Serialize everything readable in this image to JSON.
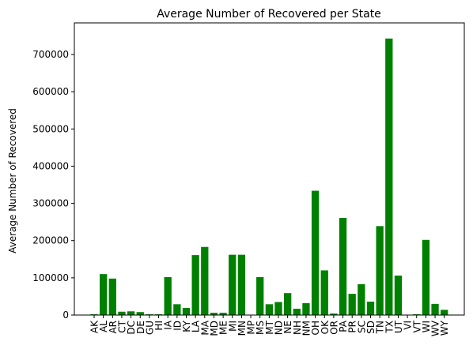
{
  "chart_data": {
    "type": "bar",
    "title": "Average Number of Recovered per State",
    "xlabel": "",
    "ylabel": "Average Number of Recovered",
    "ylim": [
      0,
      785000
    ],
    "yticks": [
      0,
      100000,
      200000,
      300000,
      400000,
      500000,
      600000,
      700000
    ],
    "grid": false,
    "bar_color": "#008000",
    "categories": [
      "AK",
      "AL",
      "AR",
      "CT",
      "DC",
      "DE",
      "GU",
      "HI",
      "IA",
      "ID",
      "KY",
      "LA",
      "MA",
      "MD",
      "ME",
      "MI",
      "MN",
      "MP",
      "MS",
      "MT",
      "ND",
      "NE",
      "NH",
      "NM",
      "OH",
      "OK",
      "OR",
      "PA",
      "PR",
      "SC",
      "SD",
      "TN",
      "TX",
      "UT",
      "VI",
      "VT",
      "WI",
      "WV",
      "WY"
    ],
    "values": [
      2000,
      110000,
      98000,
      9000,
      10000,
      8000,
      2000,
      2000,
      102000,
      29000,
      19000,
      161000,
      183000,
      6000,
      6000,
      162000,
      162000,
      0,
      102000,
      29000,
      35000,
      59000,
      17000,
      32000,
      334000,
      120000,
      4000,
      261000,
      57000,
      83000,
      36000,
      239000,
      743000,
      106000,
      0,
      2000,
      202000,
      30000,
      14000
    ]
  }
}
